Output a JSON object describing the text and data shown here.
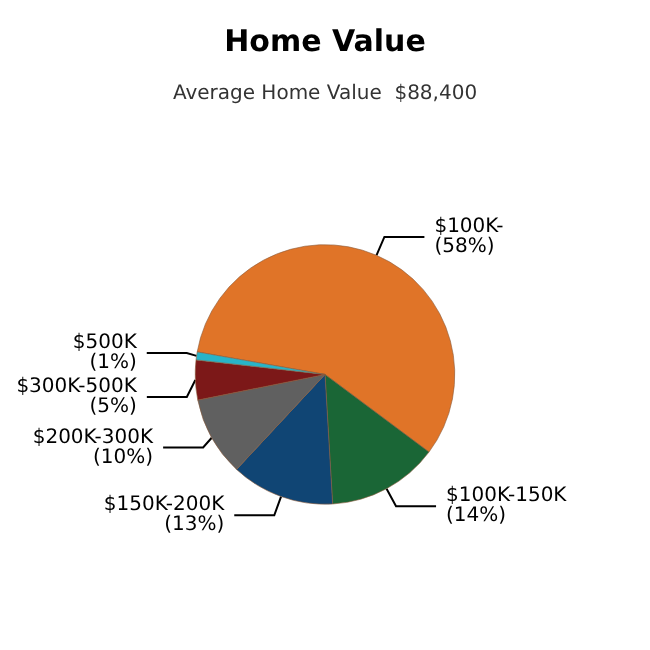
{
  "chart_data": {
    "type": "pie",
    "title": "Home Value",
    "subtitle": "Average Home Value  $88,400",
    "categories": [
      "$100K-",
      "$100K-150K",
      "$150K-200K",
      "$200K-300K",
      "$300K-500K",
      "$500K"
    ],
    "values": [
      58,
      14,
      13,
      10,
      5,
      1
    ],
    "value_labels": [
      "(58%)",
      "(14%)",
      "(13%)",
      "(10%)",
      "(5%)",
      "(1%)"
    ],
    "colors": [
      "#e07428",
      "#1a6636",
      "#104574",
      "#606060",
      "#7c1818",
      "#28b4c8"
    ],
    "legend": false
  }
}
